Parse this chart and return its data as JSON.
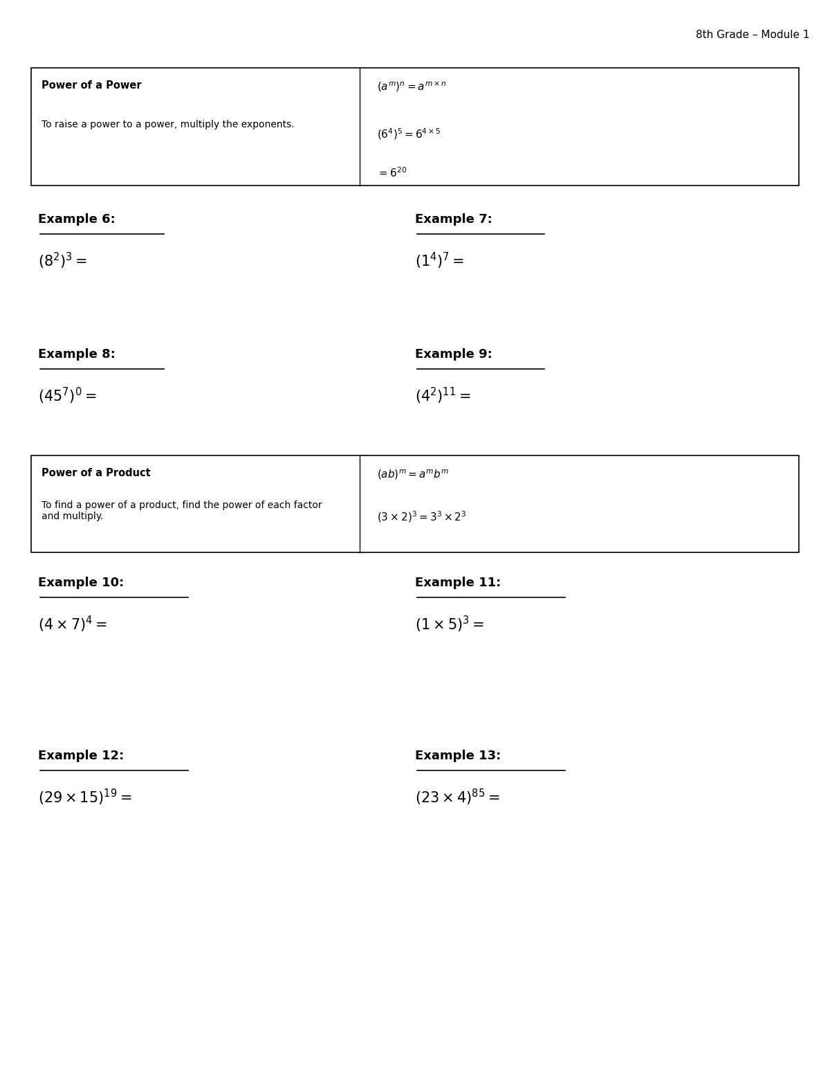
{
  "title": "8th Grade – Module 1",
  "bg_color": "#ffffff",
  "text_color": "#000000",
  "figsize": [
    12.0,
    15.53
  ],
  "dpi": 100,
  "box1_title": "Power of a Power",
  "box1_rule": "To raise a power to a power, multiply the exponents.",
  "box1_formula1": "$(a^m)^n = a^{m \\times n}$",
  "box1_formula2": "$(6^4)^5 = 6^{4 \\times 5}$",
  "box1_formula3": "$= 6^{20}$",
  "ex6_label": "Example 6:",
  "ex6_expr": "$(8^2)^3 =$",
  "ex7_label": "Example 7:",
  "ex7_expr": "$(1^4)^7 =$",
  "ex8_label": "Example 8:",
  "ex8_expr": "$(45^7)^0 =$",
  "ex9_label": "Example 9:",
  "ex9_expr": "$(4^2)^{11} =$",
  "box2_title": "Power of a Product",
  "box2_rule": "To find a power of a product, find the power of each factor\nand multiply.",
  "box2_formula1": "$(ab)^m = a^m b^m$",
  "box2_formula2": "$(3 \\times 2)^3 = 3^3 \\times 2^3$",
  "ex10_label": "Example 10:",
  "ex10_expr": "$(4 \\times 7)^4 =$",
  "ex11_label": "Example 11:",
  "ex11_expr": "$(1 \\times 5)^3 =$",
  "ex12_label": "Example 12:",
  "ex12_expr": "$(29 \\times 15)^{19} =$",
  "ex13_label": "Example 13:",
  "ex13_expr": "$(23 \\times 4)^{85} =$"
}
